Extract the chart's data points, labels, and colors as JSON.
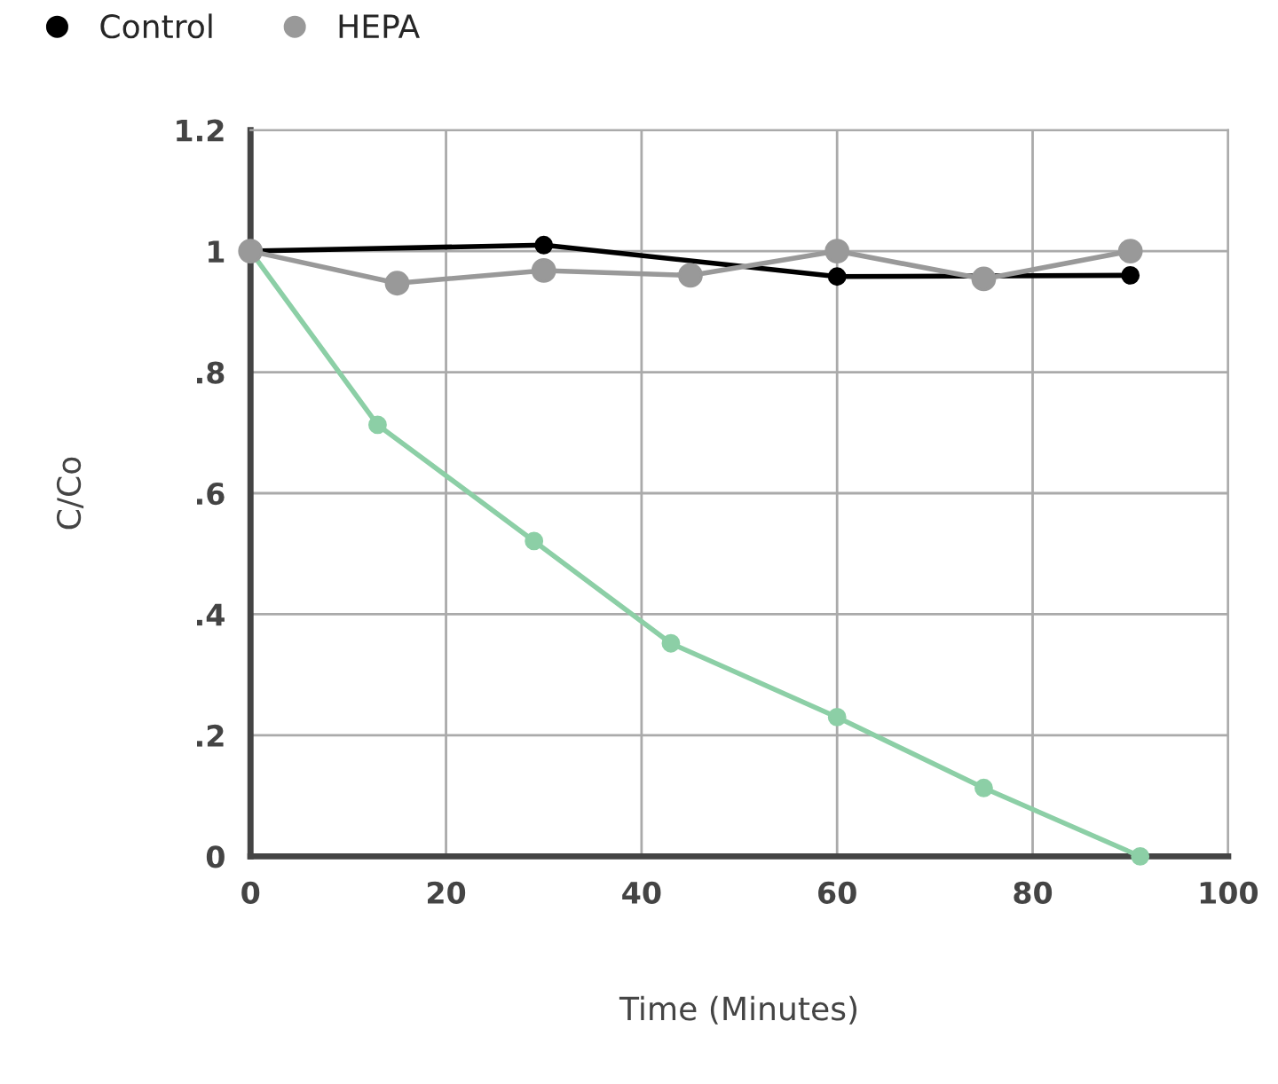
{
  "chart_data": {
    "type": "line",
    "xlabel": "Time (Minutes)",
    "ylabel": "C/Co",
    "xlim": [
      0,
      100
    ],
    "xticks": [
      0,
      20,
      40,
      60,
      80,
      100
    ],
    "ylim": [
      0,
      1.2
    ],
    "yticks": [
      {
        "value": 0,
        "label": "0"
      },
      {
        "value": 0.2,
        "label": ".2"
      },
      {
        "value": 0.4,
        "label": ".4"
      },
      {
        "value": 0.6,
        "label": ".6"
      },
      {
        "value": 0.8,
        "label": ".8"
      },
      {
        "value": 1,
        "label": "1"
      },
      {
        "value": 1.2,
        "label": "1.2"
      }
    ],
    "grid": true,
    "legend": "top left",
    "marker": "circle",
    "series": [
      {
        "color": "#8ccfa6",
        "x": [
          0,
          13,
          29,
          43,
          60,
          75,
          91
        ],
        "values": [
          1,
          0.713,
          0.521,
          0.352,
          0.23,
          0.113,
          0
        ]
      },
      {
        "name": "Control",
        "color": "#000000",
        "x": [
          0,
          30,
          60,
          90
        ],
        "values": [
          1,
          1.01,
          0.958,
          0.96
        ]
      },
      {
        "name": "HEPA",
        "color": "#999999",
        "x": [
          0,
          15,
          30,
          45,
          60,
          75,
          90
        ],
        "values": [
          1,
          0.947,
          0.968,
          0.96,
          1.0,
          0.954,
          1.0
        ]
      }
    ]
  }
}
